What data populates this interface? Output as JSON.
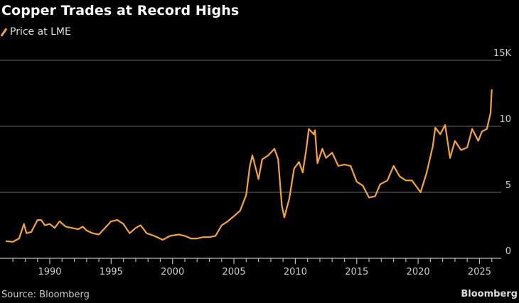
{
  "chart_data": {
    "type": "line",
    "title": "Copper Trades at Record Highs",
    "legend": [
      "Price at LME"
    ],
    "legend_placement": "top-left",
    "xlabel": "",
    "ylabel": "",
    "xlim": [
      1986,
      2026.8
    ],
    "ylim": [
      0,
      15
    ],
    "x_ticks": [
      1990,
      1995,
      2000,
      2005,
      2010,
      2015,
      2020,
      2025
    ],
    "x_tick_labels": [
      "1990",
      "1995",
      "2000",
      "2005",
      "2010",
      "2015",
      "2020",
      "2025"
    ],
    "y_ticks": [
      0,
      5,
      10,
      15
    ],
    "y_tick_labels": [
      "0",
      "5",
      "10",
      "15K"
    ],
    "grid": true,
    "color": "#f5a43a",
    "series": [
      {
        "name": "Price at LME",
        "x": [
          1986.4,
          1987.0,
          1987.5,
          1987.9,
          1988.1,
          1988.5,
          1989.0,
          1989.3,
          1989.6,
          1990.0,
          1990.4,
          1990.8,
          1991.3,
          1991.8,
          1992.3,
          1992.7,
          1993.0,
          1993.5,
          1994.0,
          1994.5,
          1995.0,
          1995.5,
          1996.0,
          1996.5,
          1997.0,
          1997.4,
          1997.9,
          1998.5,
          1999.2,
          1999.8,
          2000.5,
          2001.0,
          2001.5,
          2002.0,
          2002.5,
          2003.0,
          2003.5,
          2004.0,
          2004.5,
          2005.0,
          2005.5,
          2006.0,
          2006.3,
          2006.5,
          2007.0,
          2007.3,
          2007.8,
          2008.3,
          2008.6,
          2008.9,
          2009.1,
          2009.5,
          2009.9,
          2010.3,
          2010.6,
          2010.9,
          2011.1,
          2011.5,
          2011.6,
          2011.8,
          2012.2,
          2012.5,
          2013.0,
          2013.5,
          2014.0,
          2014.5,
          2015.0,
          2015.5,
          2016.0,
          2016.5,
          2016.9,
          2017.5,
          2018.0,
          2018.5,
          2019.0,
          2019.5,
          2020.2,
          2020.7,
          2021.2,
          2021.4,
          2021.8,
          2022.2,
          2022.6,
          2023.0,
          2023.5,
          2024.0,
          2024.4,
          2024.9,
          2025.2,
          2025.6,
          2025.9,
          2026.0
        ],
        "values": [
          1.3,
          1.25,
          1.5,
          2.6,
          1.9,
          2.0,
          2.9,
          2.9,
          2.5,
          2.6,
          2.3,
          2.8,
          2.4,
          2.3,
          2.2,
          2.4,
          2.1,
          1.9,
          1.8,
          2.3,
          2.8,
          2.9,
          2.6,
          1.9,
          2.3,
          2.5,
          1.9,
          1.7,
          1.4,
          1.7,
          1.8,
          1.7,
          1.5,
          1.5,
          1.6,
          1.6,
          1.7,
          2.5,
          2.8,
          3.2,
          3.6,
          4.8,
          7.0,
          7.8,
          6.0,
          7.5,
          7.8,
          8.3,
          7.5,
          4.0,
          3.1,
          4.5,
          6.8,
          7.3,
          6.5,
          8.3,
          9.8,
          9.4,
          9.7,
          7.2,
          8.3,
          7.6,
          8.0,
          7.0,
          7.1,
          7.0,
          5.8,
          5.5,
          4.6,
          4.7,
          5.6,
          5.9,
          7.0,
          6.2,
          5.9,
          5.9,
          5.0,
          6.5,
          8.5,
          9.9,
          9.4,
          10.1,
          7.6,
          8.9,
          8.2,
          8.4,
          9.8,
          8.9,
          9.6,
          9.8,
          11.0,
          12.8
        ]
      }
    ]
  },
  "footer": {
    "source": "Source: Bloomberg",
    "brand": "Bloomberg"
  }
}
